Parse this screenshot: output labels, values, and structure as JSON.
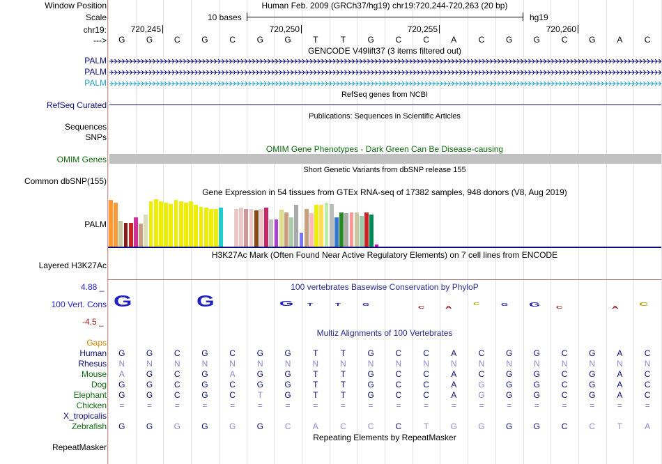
{
  "header": {
    "window_position_label": "Window Position",
    "scale_label": "Scale",
    "chr_label": "chr19:",
    "strand_label": "--->",
    "assembly_title": "Human Feb. 2009 (GRCh37/hg19)   chr19:720,244-720,263 (20 bp)",
    "scale_text": "10 bases",
    "scale_db": "hg19",
    "ruler_ticks": [
      "720,245",
      "720,250",
      "720,255",
      "720,260"
    ]
  },
  "base_sequence": [
    "G",
    "G",
    "C",
    "G",
    "C",
    "G",
    "G",
    "T",
    "T",
    "G",
    "C",
    "C",
    "A",
    "C",
    "G",
    "G",
    "C",
    "G",
    "A",
    "C"
  ],
  "tracks": {
    "gencode": {
      "title": "GENCODE V49lift37 (3 items filtered out)",
      "items": [
        "PALM",
        "PALM",
        "PALM"
      ],
      "colors": [
        "#0c0c78",
        "#0c0c78",
        "#29a3c6"
      ]
    },
    "refseq": {
      "title": "RefSeq genes from NCBI",
      "label": "RefSeq Curated",
      "color": "#0c0c78"
    },
    "publications": {
      "title": "Publications: Sequences in Scientific Articles",
      "labels": [
        "Sequences",
        "SNPs"
      ]
    },
    "omim": {
      "title": "OMIM Gene Phenotypes - Dark Green Can Be Disease-causing",
      "label": "OMIM Genes",
      "color": "#0e6a0e"
    },
    "dbsnp": {
      "title": "Short Genetic Variants from dbSNP release 155",
      "label": "Common dbSNP(155)"
    },
    "gtex": {
      "title": "Gene Expression in 54 tissues from GTEx RNA-seq of 17382 samples, 948 donors (V8, Aug 2019)",
      "label": "PALM",
      "tissue_values": [
        0.98,
        0.92,
        0.55,
        0.5,
        0.5,
        0.62,
        0.48,
        0.68,
        0.96,
        1.0,
        0.95,
        0.92,
        0.9,
        0.98,
        0.96,
        0.92,
        0.96,
        0.88,
        0.84,
        0.82,
        0.8,
        0.8,
        0.82,
        0.8,
        0.82,
        0.8,
        0.82,
        0.8,
        0.8,
        0.76,
        0.8,
        0.82,
        0.58,
        0.58,
        0.78,
        0.72,
        0.62,
        0.88,
        0.3,
        0.8,
        0.7,
        0.88,
        0.88,
        0.92,
        0.9,
        0.62,
        0.72,
        0.7,
        0.72,
        0.72,
        0.64,
        0.72,
        0.68,
        0.05
      ],
      "tissue_colors": [
        "#ff9933",
        "#ff9933",
        "#c8c8a0",
        "#8b1a1a",
        "#cc2222",
        "#cc3399",
        "#c8a080",
        "#ddddbb",
        "#eeee00",
        "#eeee00",
        "#eeee00",
        "#eeee00",
        "#eeee00",
        "#eeee00",
        "#eeee00",
        "#eeee00",
        "#eeee00",
        "#eeee00",
        "#eeee00",
        "#eeee00",
        "#eeee00",
        "#eeee00",
        "#22cccc",
        "#ffffff",
        "#ffffff",
        "#ecc8c8",
        "#ecc8c8",
        "#cc9999",
        "#ecc8c8",
        "#8b4513",
        "#ecc8c8",
        "#cc2266",
        "#c0c0c0",
        "#aa44cc",
        "#dddd88",
        "#c8a080",
        "#aaccaa",
        "#aaaaaa",
        "#7777ff",
        "#c8a080",
        "#ffbbbb",
        "#eeee00",
        "#ffdd55",
        "#bbeeaa",
        "#bbbbbb",
        "#3377cc",
        "#228822",
        "#aaaaaa",
        "#ff9999",
        "#c8c8a0",
        "#99ccaa",
        "#cc2222",
        "#008855",
        "#cc00cc"
      ]
    },
    "h3k27ac": {
      "title": "H3K27Ac Mark (Often Found Near Active Regulatory Elements) on 7 cell lines from ENCODE",
      "label": "Layered H3K27Ac"
    },
    "phylop": {
      "title": "100 vertebrates Basewise Conservation by PhyloP",
      "label": "100 Vert. Cons",
      "max_label": "4.88 _",
      "min_label": "-4.5 _",
      "values": [
        4.2,
        0,
        0,
        4.3,
        0,
        0,
        1.8,
        0.5,
        0.6,
        0.3,
        0,
        -0.4,
        -0.7,
        1.0,
        0.5,
        1.4,
        -0.6,
        0,
        -0.4,
        1.3
      ],
      "logo_letters": [
        "G",
        "",
        "",
        "G",
        "",
        "",
        "G",
        "T",
        "T",
        "G",
        "",
        "C",
        "A",
        "C",
        "G",
        "G",
        "C",
        "",
        "A",
        "C"
      ]
    },
    "multiz": {
      "title": "Multiz Alignments of 100 Vertebrates",
      "gaps_label": "Gaps",
      "species": [
        {
          "name": "Human",
          "bases": [
            "G",
            "G",
            "C",
            "G",
            "C",
            "G",
            "G",
            "T",
            "T",
            "G",
            "C",
            "C",
            "A",
            "C",
            "G",
            "G",
            "C",
            "G",
            "A",
            "C"
          ]
        },
        {
          "name": "Rhesus",
          "bases": [
            "N",
            "N",
            "N",
            "N",
            "N",
            "N",
            "N",
            "N",
            "N",
            "N",
            "N",
            "N",
            "N",
            "N",
            "N",
            "N",
            "N",
            "N",
            "N",
            "N"
          ]
        },
        {
          "name": "Mouse",
          "bases": [
            "A",
            "G",
            "C",
            "G",
            "A",
            "G",
            "G",
            "T",
            "T",
            "G",
            "C",
            "C",
            "A",
            "C",
            "G",
            "G",
            "C",
            "G",
            "A",
            "C"
          ]
        },
        {
          "name": "Dog",
          "bases": [
            "G",
            "G",
            "C",
            "G",
            "C",
            "G",
            "G",
            "T",
            "T",
            "G",
            "C",
            "C",
            "A",
            "G",
            "G",
            "G",
            "C",
            "G",
            "A",
            "C"
          ]
        },
        {
          "name": "Elephant",
          "bases": [
            "G",
            "G",
            "C",
            "G",
            "C",
            "T",
            "G",
            "T",
            "T",
            "G",
            "C",
            "C",
            "A",
            "G",
            "G",
            "G",
            "C",
            "G",
            "A",
            "C"
          ]
        },
        {
          "name": "Chicken",
          "bases": [
            "=",
            "=",
            "=",
            "=",
            "=",
            "=",
            "=",
            "=",
            "=",
            "=",
            "=",
            "=",
            "=",
            "=",
            "=",
            "=",
            "=",
            "=",
            "=",
            "="
          ]
        },
        {
          "name": "X_tropicalis",
          "bases": [
            "",
            "",
            "",
            "",
            "",
            "",
            "",
            "",
            "",
            "",
            "",
            "",
            "",
            "",
            "",
            "",
            "",
            "",
            "",
            ""
          ]
        },
        {
          "name": "Zebrafish",
          "bases": [
            "G",
            "G",
            "G",
            "G",
            "G",
            "G",
            "C",
            "A",
            "C",
            "C",
            "C",
            "T",
            "G",
            "G",
            "G",
            "G",
            "C",
            "C",
            "T",
            "A"
          ]
        }
      ]
    },
    "repeatmasker": {
      "title": "Repeating Elements by RepeatMasker",
      "label": "RepeatMasker"
    }
  },
  "colors": {
    "gencode_blue": "#0c0c78",
    "gencode_cyan": "#29a3c6",
    "omim_green": "#0e6a0e",
    "gaps_orange": "#d08700",
    "species_green": "#0e6a0e",
    "phylop_blue": "#2121c4",
    "phylop_red": "#a02020"
  }
}
